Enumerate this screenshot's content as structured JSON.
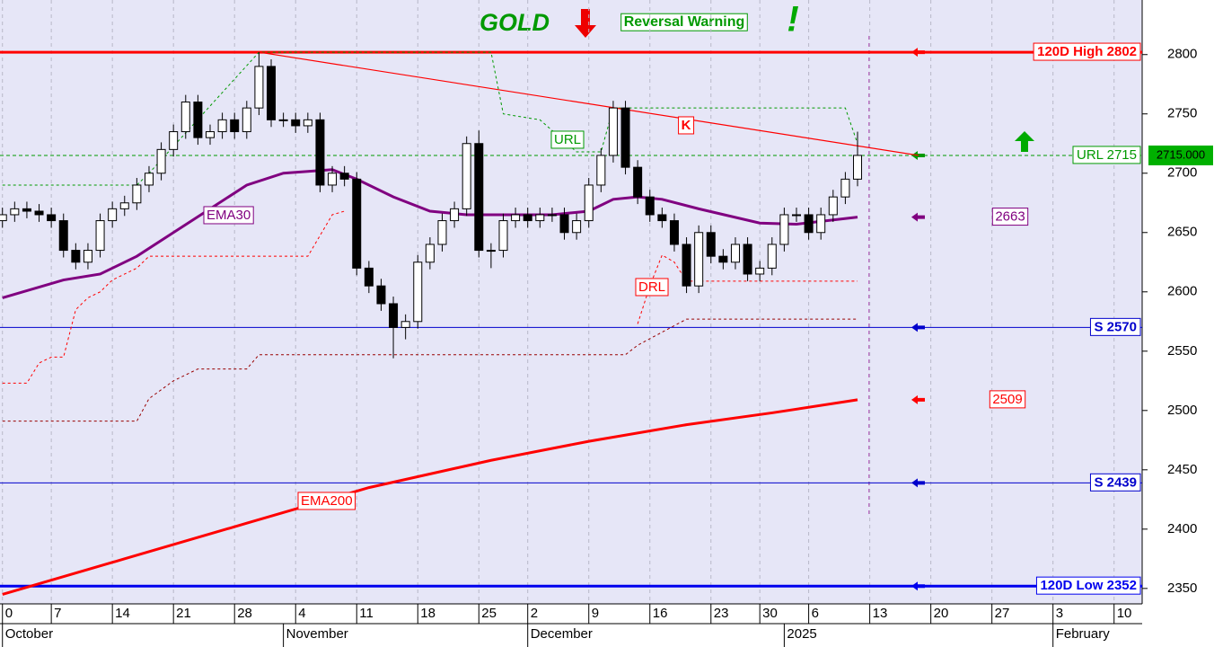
{
  "chart_data": {
    "type": "candlestick",
    "title": "GOLD",
    "subtitle": "Reversal Warning",
    "exclamation": "!",
    "x": [
      0,
      1,
      2,
      3,
      4,
      5,
      6,
      7,
      8,
      9,
      10,
      11,
      12,
      13,
      14,
      15,
      16,
      17,
      18,
      19,
      20,
      21,
      22,
      23,
      24,
      25,
      26,
      27,
      28,
      29,
      30,
      31,
      32,
      33,
      34,
      35,
      36,
      37,
      38,
      39,
      40,
      41,
      42,
      43,
      44,
      45,
      46,
      47,
      48,
      49,
      50,
      51,
      52,
      53,
      54,
      55,
      56,
      57,
      58,
      59,
      60,
      61,
      62,
      63,
      64,
      65,
      66,
      67,
      68,
      69,
      70
    ],
    "open": [
      2660,
      2665,
      2670,
      2668,
      2665,
      2660,
      2635,
      2625,
      2635,
      2660,
      2670,
      2675,
      2690,
      2700,
      2720,
      2735,
      2760,
      2730,
      2735,
      2745,
      2735,
      2755,
      2790,
      2745,
      2745,
      2740,
      2745,
      2690,
      2700,
      2695,
      2620,
      2605,
      2590,
      2570,
      2575,
      2625,
      2640,
      2660,
      2670,
      2725,
      2635,
      2635,
      2660,
      2665,
      2660,
      2665,
      2665,
      2650,
      2660,
      2690,
      2715,
      2755,
      2705,
      2680,
      2665,
      2660,
      2640,
      2605,
      2650,
      2630,
      2625,
      2640,
      2615,
      2620,
      2640,
      2665,
      2665,
      2650,
      2665,
      2680,
      2695
    ],
    "high": [
      2671,
      2676,
      2676,
      2674,
      2671,
      2666,
      2641,
      2641,
      2666,
      2676,
      2681,
      2696,
      2706,
      2726,
      2741,
      2766,
      2766,
      2741,
      2751,
      2751,
      2761,
      2802,
      2796,
      2751,
      2751,
      2751,
      2751,
      2706,
      2706,
      2701,
      2626,
      2611,
      2596,
      2581,
      2631,
      2646,
      2666,
      2676,
      2731,
      2736,
      2641,
      2666,
      2671,
      2671,
      2671,
      2671,
      2671,
      2666,
      2696,
      2721,
      2761,
      2761,
      2711,
      2686,
      2671,
      2666,
      2646,
      2656,
      2656,
      2636,
      2646,
      2646,
      2626,
      2646,
      2671,
      2671,
      2671,
      2671,
      2686,
      2701,
      2735
    ],
    "low": [
      2654,
      2659,
      2662,
      2659,
      2654,
      2629,
      2619,
      2619,
      2629,
      2654,
      2664,
      2669,
      2684,
      2694,
      2714,
      2729,
      2724,
      2724,
      2729,
      2729,
      2729,
      2749,
      2739,
      2739,
      2734,
      2734,
      2684,
      2684,
      2689,
      2614,
      2599,
      2584,
      2544,
      2560,
      2569,
      2619,
      2634,
      2654,
      2664,
      2629,
      2620,
      2629,
      2654,
      2654,
      2654,
      2659,
      2644,
      2644,
      2654,
      2684,
      2709,
      2699,
      2674,
      2659,
      2654,
      2634,
      2599,
      2599,
      2624,
      2619,
      2619,
      2609,
      2609,
      2614,
      2634,
      2659,
      2644,
      2644,
      2659,
      2674,
      2689
    ],
    "close": [
      2665,
      2670,
      2668,
      2665,
      2660,
      2635,
      2625,
      2635,
      2660,
      2670,
      2675,
      2690,
      2700,
      2720,
      2735,
      2760,
      2730,
      2735,
      2745,
      2735,
      2755,
      2790,
      2745,
      2745,
      2740,
      2745,
      2690,
      2700,
      2695,
      2620,
      2605,
      2590,
      2570,
      2575,
      2625,
      2640,
      2660,
      2670,
      2725,
      2635,
      2635,
      2660,
      2665,
      2660,
      2665,
      2665,
      2650,
      2660,
      2690,
      2715,
      2755,
      2705,
      2680,
      2665,
      2660,
      2640,
      2605,
      2650,
      2630,
      2625,
      2640,
      2615,
      2620,
      2640,
      2665,
      2665,
      2650,
      2665,
      2680,
      2695,
      2715
    ],
    "series": [
      {
        "name": "EMA30",
        "color": "#800080",
        "width": 3,
        "dash": false,
        "x": [
          0,
          5,
          8,
          11,
          14,
          17,
          20,
          23,
          27,
          29,
          32,
          35,
          38,
          45,
          48,
          50,
          52,
          54,
          57,
          62,
          65,
          70
        ],
        "values": [
          2595,
          2610,
          2615,
          2630,
          2650,
          2670,
          2690,
          2700,
          2703,
          2695,
          2680,
          2668,
          2665,
          2665,
          2668,
          2678,
          2680,
          2678,
          2670,
          2658,
          2657,
          2663
        ]
      },
      {
        "name": "EMA200",
        "color": "#ff0000",
        "width": 3,
        "dash": false,
        "x": [
          0,
          10,
          20,
          30,
          40,
          48,
          56,
          63,
          70
        ],
        "values": [
          2345,
          2375,
          2405,
          2435,
          2458,
          2474,
          2488,
          2498,
          2509
        ]
      },
      {
        "name": "URL",
        "color": "#009900",
        "width": 1,
        "dash": true,
        "x": [
          0,
          11,
          12,
          21,
          40,
          41,
          44,
          47,
          49,
          50,
          69,
          70
        ],
        "values": [
          2690,
          2690,
          2700,
          2802,
          2802,
          2750,
          2745,
          2718,
          2718,
          2755,
          2755,
          2725
        ]
      },
      {
        "name": "DRL",
        "color": "#ff0000",
        "width": 1,
        "dash": true,
        "x": [
          0,
          2,
          3,
          4,
          5,
          6,
          7,
          8,
          9,
          10,
          11,
          12,
          25,
          27,
          28,
          40,
          52,
          53,
          54,
          55,
          56,
          70
        ],
        "values": [
          2523,
          2523,
          2540,
          2545,
          2545,
          2585,
          2595,
          2600,
          2610,
          2615,
          2620,
          2630,
          2630,
          2665,
          2668,
          null,
          2573,
          2605,
          2631,
          2625,
          2609,
          2609
        ]
      },
      {
        "color": "#990000",
        "width": 1,
        "dash": true,
        "x": [
          0,
          11,
          12,
          14,
          16,
          20,
          21,
          51,
          52,
          56,
          70
        ],
        "values": [
          2491,
          2491,
          2510,
          2525,
          2535,
          2535,
          2547,
          2547,
          2555,
          2577,
          2577
        ]
      }
    ],
    "trendline": {
      "label": "K",
      "color": "#ff0000",
      "x": [
        21,
        75
      ],
      "values": [
        2802,
        2715
      ]
    },
    "levels": [
      {
        "label": "120D High 2802",
        "value": 2802,
        "color": "#ff0000",
        "width": 3,
        "dash": false
      },
      {
        "label": "URL 2715",
        "value": 2715,
        "color": "#009900",
        "width": 1,
        "dash": true
      },
      {
        "label": "S 2570",
        "value": 2570,
        "color": "#0000cc",
        "width": 1,
        "dash": false
      },
      {
        "label": "S 2439",
        "value": 2439,
        "color": "#0000cc",
        "width": 1,
        "dash": false
      },
      {
        "label": "120D Low 2352",
        "value": 2352,
        "color": "#0000ee",
        "width": 3,
        "dash": false
      }
    ],
    "last_price": {
      "value": 2715,
      "label": "2715.000"
    },
    "xlim": [
      -0.2,
      93.3
    ],
    "xticks": [
      {
        "value": 0,
        "label": "0"
      },
      {
        "value": 4,
        "label": "7"
      },
      {
        "value": 9,
        "label": "14"
      },
      {
        "value": 14,
        "label": "21"
      },
      {
        "value": 19,
        "label": "28"
      },
      {
        "value": 24,
        "label": "4"
      },
      {
        "value": 29,
        "label": "11"
      },
      {
        "value": 34,
        "label": "18"
      },
      {
        "value": 39,
        "label": "25"
      },
      {
        "value": 43,
        "label": "2"
      },
      {
        "value": 48,
        "label": "9"
      },
      {
        "value": 53,
        "label": "16"
      },
      {
        "value": 58,
        "label": "23"
      },
      {
        "value": 62,
        "label": "30"
      },
      {
        "value": 66,
        "label": "6"
      },
      {
        "value": 71,
        "label": "13"
      },
      {
        "value": 76,
        "label": "20"
      },
      {
        "value": 81,
        "label": "27"
      },
      {
        "value": 86,
        "label": "3"
      },
      {
        "value": 91,
        "label": "10"
      }
    ],
    "months": [
      {
        "value": 0,
        "label": "October"
      },
      {
        "value": 23,
        "label": "November"
      },
      {
        "value": 43,
        "label": "December"
      },
      {
        "value": 64,
        "label": "2025"
      },
      {
        "value": 86,
        "label": "February"
      }
    ],
    "ylim": [
      2337,
      2846
    ],
    "yticks": [
      2350,
      2400,
      2450,
      2500,
      2550,
      2600,
      2650,
      2700,
      2750,
      2800
    ],
    "grid": "x"
  }
}
